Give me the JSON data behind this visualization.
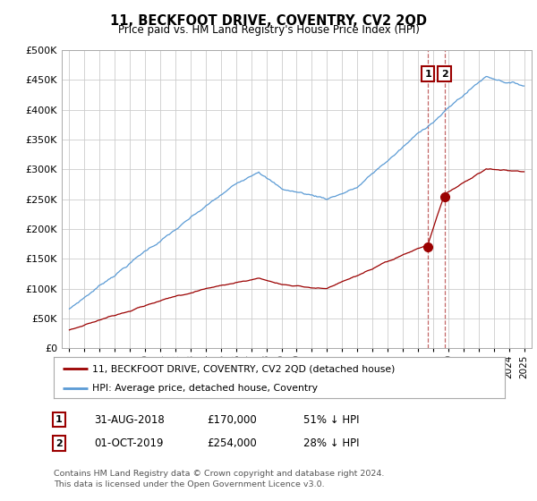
{
  "title": "11, BECKFOOT DRIVE, COVENTRY, CV2 2QD",
  "subtitle": "Price paid vs. HM Land Registry's House Price Index (HPI)",
  "legend_line1": "11, BECKFOOT DRIVE, COVENTRY, CV2 2QD (detached house)",
  "legend_line2": "HPI: Average price, detached house, Coventry",
  "footer": "Contains HM Land Registry data © Crown copyright and database right 2024.\nThis data is licensed under the Open Government Licence v3.0.",
  "table": [
    {
      "num": "1",
      "date": "31-AUG-2018",
      "price": "£170,000",
      "hpi": "51% ↓ HPI"
    },
    {
      "num": "2",
      "date": "01-OCT-2019",
      "price": "£254,000",
      "hpi": "28% ↓ HPI"
    }
  ],
  "vline1_x": 2018.667,
  "vline2_x": 2019.75,
  "sale1_y": 170000,
  "sale2_y": 254000,
  "ylim": [
    0,
    500000
  ],
  "yticks": [
    0,
    50000,
    100000,
    150000,
    200000,
    250000,
    300000,
    350000,
    400000,
    450000,
    500000
  ],
  "xlim": [
    1994.5,
    2025.5
  ],
  "xticks": [
    1995,
    1996,
    1997,
    1998,
    1999,
    2000,
    2001,
    2002,
    2003,
    2004,
    2005,
    2006,
    2007,
    2008,
    2009,
    2010,
    2011,
    2012,
    2013,
    2014,
    2015,
    2016,
    2017,
    2018,
    2019,
    2020,
    2021,
    2022,
    2023,
    2024,
    2025
  ],
  "hpi_color": "#5b9bd5",
  "price_color": "#9b0000",
  "background_color": "#ffffff",
  "grid_color": "#cccccc"
}
